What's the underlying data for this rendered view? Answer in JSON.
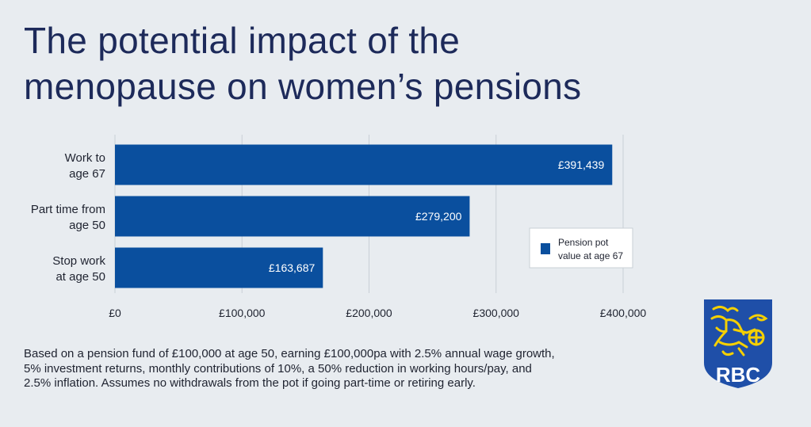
{
  "title": {
    "line1": "The potential impact of the",
    "line2": "menopause on women’s pensions"
  },
  "chart_data": {
    "type": "bar",
    "orientation": "horizontal",
    "categories": [
      [
        "Work to",
        "age 67"
      ],
      [
        "Part time from",
        "age 50"
      ],
      [
        "Stop work",
        "at age 50"
      ]
    ],
    "series": [
      {
        "name": "Pension pot value at age 67",
        "values": [
          391439,
          279200,
          163687
        ],
        "labels": [
          "£391,439",
          "£279,200",
          "£163,687"
        ]
      }
    ],
    "xlim": [
      0,
      400000
    ],
    "xticks": [
      0,
      100000,
      200000,
      300000,
      400000
    ],
    "xtick_labels": [
      "£0",
      "£100,000",
      "£200,000",
      "£300,000",
      "£400,000"
    ],
    "legend": {
      "lines": [
        "Pension pot",
        "value at age 67"
      ],
      "placement": "right"
    },
    "grid": true,
    "bar_color": "#0a4f9e"
  },
  "footnote": {
    "lines": [
      "Based on a pension fund of £100,000 at age 50, earning £100,000pa with 2.5% annual wage growth,",
      "5% investment returns, monthly contributions of 10%, a 50% reduction in working hours/pay, and",
      "2.5% inflation. Assumes no withdrawals from the pot if going part-time or retiring early."
    ]
  },
  "logo": {
    "text": "RBC",
    "colors": {
      "shield": "#1f4fa8",
      "lion": "#f5d000"
    }
  }
}
